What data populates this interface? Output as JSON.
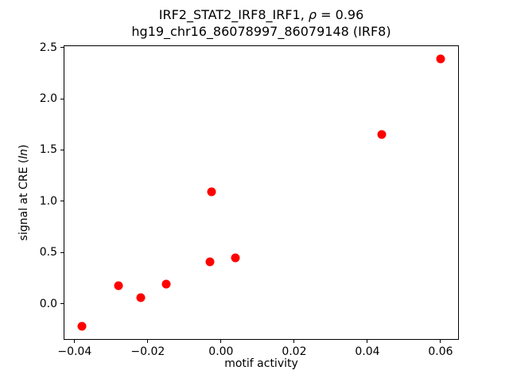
{
  "chart_data": {
    "type": "scatter",
    "title": "IRF2_STAT2_IRF8_IRF1, ρ = 0.96",
    "title_parts": {
      "prefix": "IRF2_STAT2_IRF8_IRF1, ",
      "rho": "ρ",
      "suffix": " = 0.96"
    },
    "subtitle": "hg19_chr16_86078997_86079148 (IRF8)",
    "xlabel": "motif activity",
    "ylabel": "signal at CRE (ln)",
    "ylabel_parts": {
      "prefix": "signal at CRE (",
      "italic": "ln",
      "suffix": ")"
    },
    "marker_color": "#ff0000",
    "background_color": "#ffffff",
    "axis_color": "#000000",
    "grid": false,
    "legend": null,
    "xlim": [
      -0.043,
      0.065
    ],
    "ylim": [
      -0.35,
      2.52
    ],
    "x_ticks": [
      -0.04,
      -0.02,
      0.0,
      0.02,
      0.04,
      0.06
    ],
    "x_tick_labels": [
      "−0.04",
      "−0.02",
      "0.00",
      "0.02",
      "0.04",
      "0.06"
    ],
    "y_ticks": [
      0.0,
      0.5,
      1.0,
      1.5,
      2.0,
      2.5
    ],
    "y_tick_labels": [
      "0.0",
      "0.5",
      "1.0",
      "1.5",
      "2.0",
      "2.5"
    ],
    "points": [
      {
        "x": -0.038,
        "y": -0.22
      },
      {
        "x": -0.028,
        "y": 0.18
      },
      {
        "x": -0.022,
        "y": 0.06
      },
      {
        "x": -0.015,
        "y": 0.19
      },
      {
        "x": -0.003,
        "y": 0.41
      },
      {
        "x": -0.0025,
        "y": 1.09
      },
      {
        "x": 0.004,
        "y": 0.45
      },
      {
        "x": 0.044,
        "y": 1.65
      },
      {
        "x": 0.06,
        "y": 2.39
      }
    ]
  }
}
